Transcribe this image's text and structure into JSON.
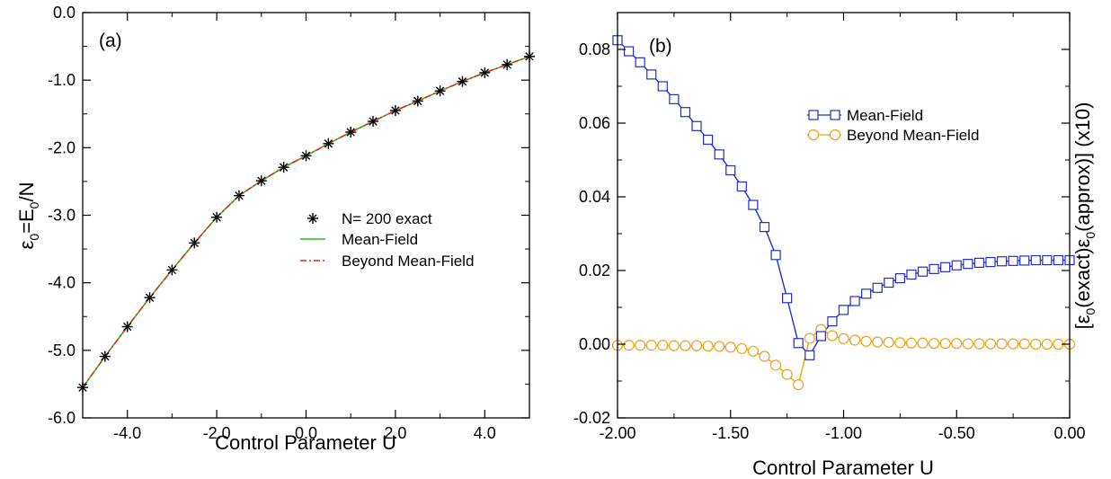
{
  "chart_data": [
    {
      "panel": "(a)",
      "type": "line",
      "xlabel": "Control Parameter U",
      "ylabel_main": "ε",
      "ylabel_sub0": "0",
      "ylabel_mid": "=E",
      "ylabel_sub1": "0",
      "ylabel_tail": "/N",
      "xlim": [
        -5,
        5
      ],
      "ylim": [
        -6,
        0
      ],
      "xticks": [
        -4,
        -2,
        0,
        2,
        4
      ],
      "xtick_labels": [
        "-4.0",
        "-2.0",
        "0.0",
        "2.0",
        "4.0"
      ],
      "yticks": [
        0,
        -1,
        -2,
        -3,
        -4,
        -5,
        -6
      ],
      "ytick_labels": [
        "0.0",
        "-1.0",
        "-2.0",
        "-3.0",
        "-4.0",
        "-5.0",
        "-6.0"
      ],
      "legend_position": "center-right",
      "series": [
        {
          "name": "N= 200 exact",
          "style": "markers",
          "marker": "asterisk",
          "color": "#000000",
          "x": [
            -5,
            -4.5,
            -4,
            -3.5,
            -3,
            -2.5,
            -2,
            -1.5,
            -1,
            -0.5,
            0,
            0.5,
            1,
            1.5,
            2,
            2.5,
            3,
            3.5,
            4,
            4.5,
            5
          ],
          "y": [
            -5.55,
            -5.09,
            -4.65,
            -4.22,
            -3.81,
            -3.41,
            -3.03,
            -2.71,
            -2.49,
            -2.29,
            -2.12,
            -1.94,
            -1.77,
            -1.61,
            -1.45,
            -1.31,
            -1.16,
            -1.02,
            -0.89,
            -0.77,
            -0.65
          ]
        },
        {
          "name": "Mean-Field",
          "style": "line",
          "color": "#22c022",
          "x": [
            -5,
            -4.5,
            -4,
            -3.5,
            -3,
            -2.5,
            -2,
            -1.5,
            -1,
            -0.5,
            0,
            0.5,
            1,
            1.5,
            2,
            2.5,
            3,
            3.5,
            4,
            4.5,
            5
          ],
          "y": [
            -5.55,
            -5.09,
            -4.65,
            -4.22,
            -3.81,
            -3.41,
            -3.03,
            -2.71,
            -2.49,
            -2.29,
            -2.12,
            -1.94,
            -1.77,
            -1.61,
            -1.45,
            -1.31,
            -1.16,
            -1.02,
            -0.89,
            -0.77,
            -0.65
          ]
        },
        {
          "name": "Beyond Mean-Field",
          "style": "dashdot",
          "color": "#e8231e",
          "x": [
            -5,
            -4.5,
            -4,
            -3.5,
            -3,
            -2.5,
            -2,
            -1.5,
            -1,
            -0.5,
            0,
            0.5,
            1,
            1.5,
            2,
            2.5,
            3,
            3.5,
            4,
            4.5,
            5
          ],
          "y": [
            -5.55,
            -5.09,
            -4.65,
            -4.22,
            -3.81,
            -3.41,
            -3.03,
            -2.71,
            -2.49,
            -2.29,
            -2.12,
            -1.94,
            -1.77,
            -1.61,
            -1.45,
            -1.31,
            -1.16,
            -1.02,
            -0.89,
            -0.77,
            -0.65
          ]
        }
      ]
    },
    {
      "panel": "(b)",
      "type": "line",
      "xlabel": "Control Parameter U",
      "ylabel_open": "[ε",
      "ylabel_sub0": "0",
      "ylabel_mid": "(exact)ε",
      "ylabel_sub1": "0",
      "ylabel_tail": "(approx)] (x10)",
      "xlim": [
        -2,
        0
      ],
      "ylim": [
        -0.02,
        0.09
      ],
      "xticks": [
        -2,
        -1.5,
        -1,
        -0.5,
        0
      ],
      "xtick_labels": [
        "-2.00",
        "-1.50",
        "-1.00",
        "-0.50",
        "0.00"
      ],
      "yticks": [
        -0.02,
        0,
        0.02,
        0.04,
        0.06,
        0.08
      ],
      "ytick_labels": [
        "-0.02",
        "0.00",
        "0.02",
        "0.04",
        "0.06",
        "0.08"
      ],
      "legend_position": "upper-right",
      "series": [
        {
          "name": "Mean-Field",
          "marker": "square",
          "color": "#1f2fd0",
          "x": [
            -2,
            -1.95,
            -1.9,
            -1.85,
            -1.8,
            -1.75,
            -1.7,
            -1.65,
            -1.6,
            -1.55,
            -1.5,
            -1.45,
            -1.4,
            -1.35,
            -1.3,
            -1.25,
            -1.2,
            -1.15,
            -1.1,
            -1.05,
            -1,
            -0.95,
            -0.9,
            -0.85,
            -0.8,
            -0.75,
            -0.7,
            -0.65,
            -0.6,
            -0.55,
            -0.5,
            -0.45,
            -0.4,
            -0.35,
            -0.3,
            -0.25,
            -0.2,
            -0.15,
            -0.1,
            -0.05,
            0
          ],
          "y": [
            0.0825,
            0.0795,
            0.0765,
            0.0732,
            0.07,
            0.0665,
            0.063,
            0.0592,
            0.0555,
            0.0515,
            0.0472,
            0.0428,
            0.0378,
            0.0318,
            0.0242,
            0.0125,
            0.0003,
            -0.003,
            0.0022,
            0.0062,
            0.0093,
            0.0117,
            0.0137,
            0.0153,
            0.0167,
            0.0179,
            0.0189,
            0.0197,
            0.0204,
            0.0209,
            0.0214,
            0.0218,
            0.0221,
            0.0223,
            0.0225,
            0.0226,
            0.0227,
            0.0228,
            0.0228,
            0.0228,
            0.0228
          ]
        },
        {
          "name": "Beyond Mean-Field",
          "marker": "circle",
          "color": "#f0a010",
          "x": [
            -2,
            -1.95,
            -1.9,
            -1.85,
            -1.8,
            -1.75,
            -1.7,
            -1.65,
            -1.6,
            -1.55,
            -1.5,
            -1.45,
            -1.4,
            -1.35,
            -1.3,
            -1.25,
            -1.2,
            -1.15,
            -1.1,
            -1.05,
            -1,
            -0.95,
            -0.9,
            -0.85,
            -0.8,
            -0.75,
            -0.7,
            -0.65,
            -0.6,
            -0.55,
            -0.5,
            -0.45,
            -0.4,
            -0.35,
            -0.3,
            -0.25,
            -0.2,
            -0.15,
            -0.1,
            -0.05,
            0
          ],
          "y": [
            -0.0003,
            -0.0003,
            -0.0003,
            -0.0003,
            -0.0003,
            -0.0004,
            -0.0004,
            -0.0004,
            -0.0005,
            -0.0006,
            -0.0008,
            -0.0012,
            -0.0019,
            -0.0033,
            -0.0057,
            -0.0082,
            -0.011,
            0.0016,
            0.004,
            0.0023,
            0.0015,
            0.0011,
            0.0008,
            0.0006,
            0.0005,
            0.0004,
            0.0003,
            0.0003,
            0.0002,
            0.0002,
            0.0002,
            0.0001,
            0.0001,
            0.0001,
            0.0001,
            0.0001,
            0.0001,
            0.0,
            0.0,
            0.0,
            0.0
          ]
        }
      ]
    }
  ]
}
